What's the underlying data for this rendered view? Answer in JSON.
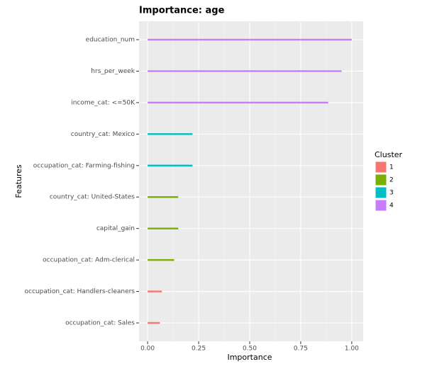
{
  "chart_data": {
    "type": "bar",
    "orientation": "horizontal",
    "title": "Importance: age",
    "x_label": "Importance",
    "y_label": "Features",
    "categories": [
      "education_num",
      "hrs_per_week",
      "income_cat: <=50K",
      "country_cat: Mexico",
      "occupation_cat: Farming-fishing",
      "country_cat: United-States",
      "capital_gain",
      "occupation_cat: Adm-clerical",
      "occupation_cat: Handlers-cleaners",
      "occupation_cat: Sales"
    ],
    "legend_title": "Cluster",
    "series": [
      {
        "name": "1",
        "color": "#f8766d",
        "values": [
          null,
          null,
          null,
          null,
          null,
          null,
          null,
          null,
          0.07,
          0.06
        ]
      },
      {
        "name": "2",
        "color": "#7cae00",
        "values": [
          null,
          null,
          null,
          null,
          null,
          0.15,
          0.15,
          0.13,
          null,
          null
        ]
      },
      {
        "name": "3",
        "color": "#00bfc4",
        "values": [
          null,
          null,
          null,
          0.22,
          0.22,
          null,
          null,
          null,
          null,
          null
        ]
      },
      {
        "name": "4",
        "color": "#c77cff",
        "values": [
          1.0,
          0.95,
          0.885,
          null,
          null,
          null,
          null,
          null,
          null,
          null
        ]
      }
    ],
    "xlim": [
      -0.042,
      1.056
    ],
    "xticks": [
      {
        "value": 0,
        "label": "0.00"
      },
      {
        "value": 0.25,
        "label": "0.25"
      },
      {
        "value": 0.5,
        "label": "0.50"
      },
      {
        "value": 0.75,
        "label": "0.75"
      },
      {
        "value": 1,
        "label": "1.00"
      }
    ],
    "grid": true,
    "legend_position": "right"
  }
}
